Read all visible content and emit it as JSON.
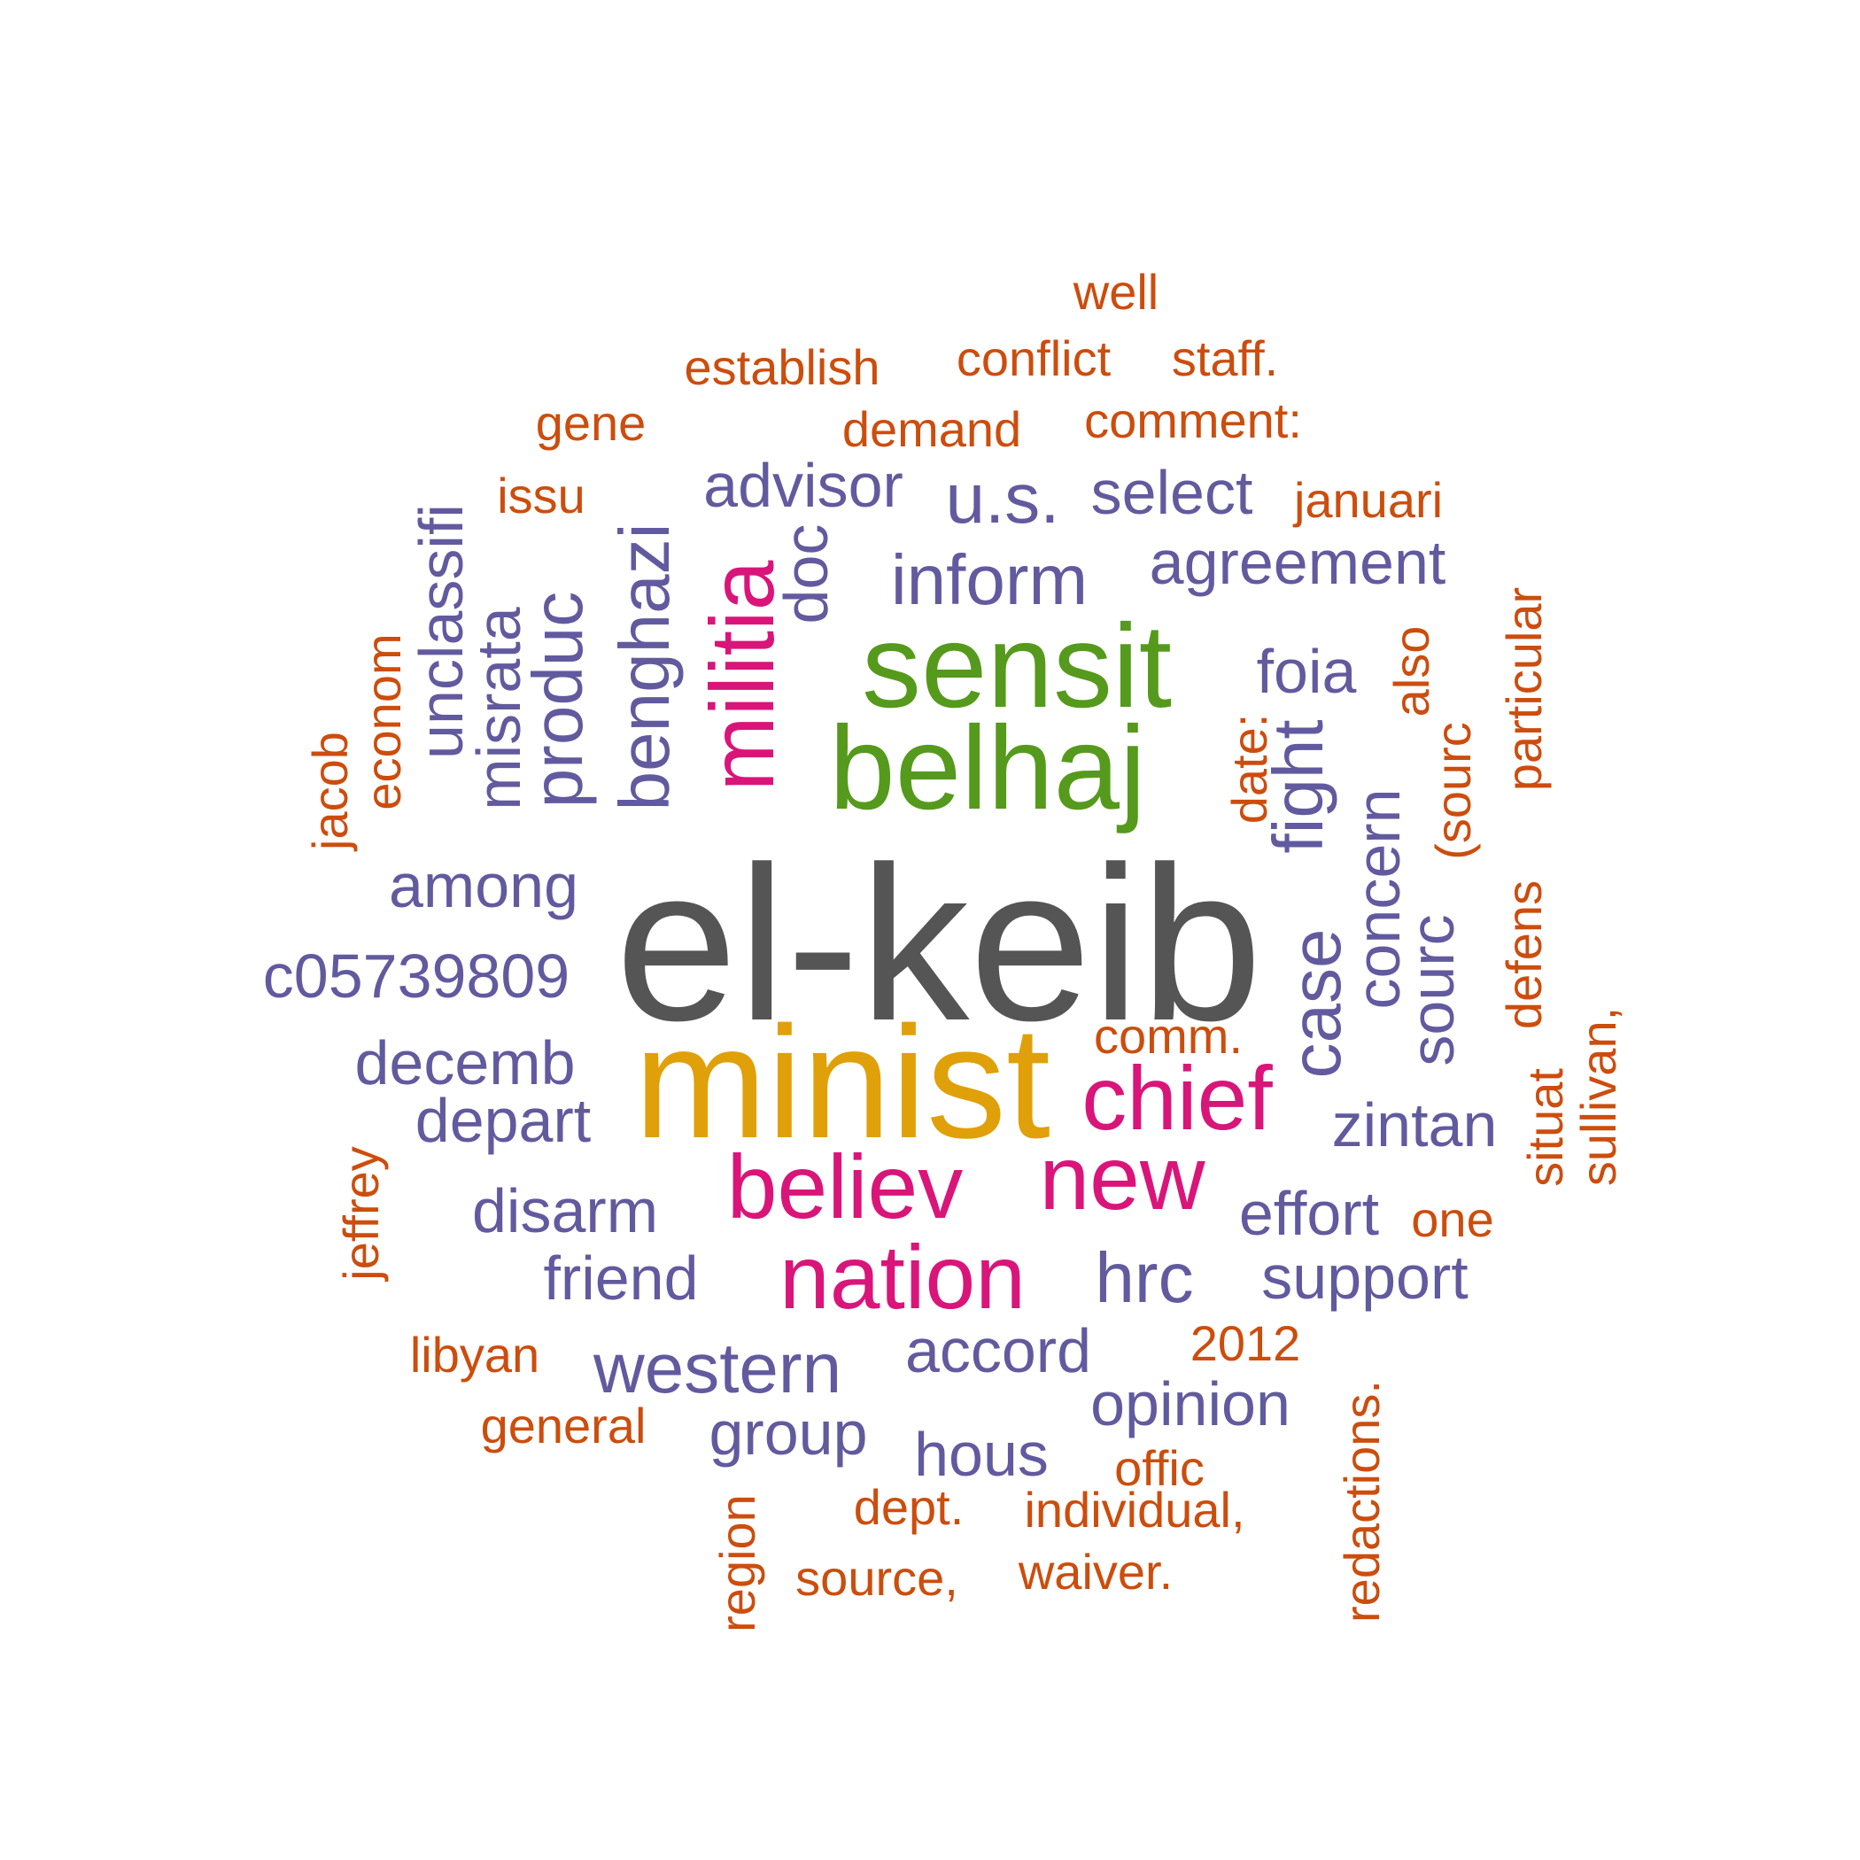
{
  "colors": {
    "gray": "#555555",
    "gold": "#E0A00A",
    "green": "#559A1C",
    "magenta": "#D9157A",
    "purple": "#625A9E",
    "orange": "#CC4D0D"
  },
  "words": [
    {
      "text": "el-keib",
      "color": "gray"
    },
    {
      "text": "minist",
      "color": "gold"
    },
    {
      "text": "sensit",
      "color": "green"
    },
    {
      "text": "belhaj",
      "color": "green"
    },
    {
      "text": "militia",
      "color": "magenta"
    },
    {
      "text": "chief",
      "color": "magenta"
    },
    {
      "text": "new",
      "color": "magenta"
    },
    {
      "text": "believ",
      "color": "magenta"
    },
    {
      "text": "nation",
      "color": "magenta"
    },
    {
      "text": "well",
      "color": "orange"
    },
    {
      "text": "establish",
      "color": "orange"
    },
    {
      "text": "conflict",
      "color": "orange"
    },
    {
      "text": "staff.",
      "color": "orange"
    },
    {
      "text": "gene",
      "color": "orange"
    },
    {
      "text": "demand",
      "color": "orange"
    },
    {
      "text": "comment:",
      "color": "orange"
    },
    {
      "text": "issu",
      "color": "orange"
    },
    {
      "text": "januari",
      "color": "orange"
    },
    {
      "text": "econom",
      "color": "orange"
    },
    {
      "text": "jacob",
      "color": "orange"
    },
    {
      "text": "date:",
      "color": "orange"
    },
    {
      "text": "also",
      "color": "orange"
    },
    {
      "text": "(sourc",
      "color": "orange"
    },
    {
      "text": "particular",
      "color": "orange"
    },
    {
      "text": "defens",
      "color": "orange"
    },
    {
      "text": "situat",
      "color": "orange"
    },
    {
      "text": "sullivan,",
      "color": "orange"
    },
    {
      "text": "comm.",
      "color": "orange"
    },
    {
      "text": "one",
      "color": "orange"
    },
    {
      "text": "jeffrey",
      "color": "orange"
    },
    {
      "text": "2012",
      "color": "orange"
    },
    {
      "text": "libyan",
      "color": "orange"
    },
    {
      "text": "general",
      "color": "orange"
    },
    {
      "text": "redactions.",
      "color": "orange"
    },
    {
      "text": "offic",
      "color": "orange"
    },
    {
      "text": "dept.",
      "color": "orange"
    },
    {
      "text": "individual,",
      "color": "orange"
    },
    {
      "text": "region",
      "color": "orange"
    },
    {
      "text": "source,",
      "color": "orange"
    },
    {
      "text": "waiver.",
      "color": "orange"
    },
    {
      "text": "advisor",
      "color": "purple"
    },
    {
      "text": "u.s.",
      "color": "purple"
    },
    {
      "text": "select",
      "color": "purple"
    },
    {
      "text": "inform",
      "color": "purple"
    },
    {
      "text": "agreement",
      "color": "purple"
    },
    {
      "text": "foia",
      "color": "purple"
    },
    {
      "text": "unclassifi",
      "color": "purple"
    },
    {
      "text": "misrata",
      "color": "purple"
    },
    {
      "text": "produc",
      "color": "purple"
    },
    {
      "text": "benghazi",
      "color": "purple"
    },
    {
      "text": "doc",
      "color": "purple"
    },
    {
      "text": "fight",
      "color": "purple"
    },
    {
      "text": "concern",
      "color": "purple"
    },
    {
      "text": "case",
      "color": "purple"
    },
    {
      "text": "sourc",
      "color": "purple"
    },
    {
      "text": "among",
      "color": "purple"
    },
    {
      "text": "c05739809",
      "color": "purple"
    },
    {
      "text": "decemb",
      "color": "purple"
    },
    {
      "text": "depart",
      "color": "purple"
    },
    {
      "text": "zintan",
      "color": "purple"
    },
    {
      "text": "disarm",
      "color": "purple"
    },
    {
      "text": "effort",
      "color": "purple"
    },
    {
      "text": "friend",
      "color": "purple"
    },
    {
      "text": "hrc",
      "color": "purple"
    },
    {
      "text": "support",
      "color": "purple"
    },
    {
      "text": "western",
      "color": "purple"
    },
    {
      "text": "accord",
      "color": "purple"
    },
    {
      "text": "opinion",
      "color": "purple"
    },
    {
      "text": "group",
      "color": "purple"
    },
    {
      "text": "hous",
      "color": "purple"
    }
  ]
}
